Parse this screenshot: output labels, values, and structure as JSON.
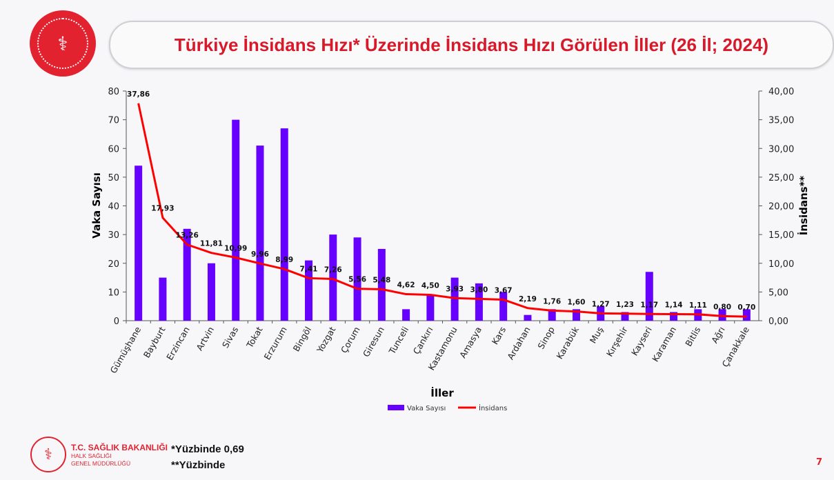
{
  "header": {
    "title": "Türkiye İnsidans Hızı* Üzerinde İnsidans Hızı Görülen İller (26 İl; 2024)"
  },
  "footer": {
    "org_name": "T.C. SAĞLIK BAKANLIĞI",
    "org_sub1": "HALK SAĞLIĞI",
    "org_sub2": "GENEL MÜDÜRLÜĞÜ",
    "note1": "*Yüzbinde 0,69",
    "note2": "**Yüzbinde",
    "page_number": "7"
  },
  "colors": {
    "bar": "#6600ff",
    "line": "#ff0000",
    "title": "#d7192a"
  },
  "chart_data": {
    "type": "bar+line",
    "xlabel": "İller",
    "ylabel": "Vaka Sayısı",
    "y2label": "İnsidans**",
    "ylim": [
      0,
      80
    ],
    "y2lim": [
      0,
      40
    ],
    "yticks": [
      "0",
      "10",
      "20",
      "30",
      "40",
      "50",
      "60",
      "70",
      "80"
    ],
    "y2ticks": [
      "0,00",
      "5,00",
      "10,00",
      "15,00",
      "20,00",
      "25,00",
      "30,00",
      "35,00",
      "40,00"
    ],
    "legend_position": "bottom",
    "grid": false,
    "categories": [
      "Gümüşhane",
      "Bayburt",
      "Erzincan",
      "Artvin",
      "Sivas",
      "Tokat",
      "Erzurum",
      "Bingöl",
      "Yozgat",
      "Çorum",
      "Giresun",
      "Tunceli",
      "Çankırı",
      "Kastamonu",
      "Amasya",
      "Kars",
      "Ardahan",
      "Sinop",
      "Karabük",
      "Muş",
      "Kırşehir",
      "Kayseri",
      "Karaman",
      "Bitlis",
      "Ağrı",
      "Çanakkale"
    ],
    "series": [
      {
        "name": "Vaka Sayısı",
        "type": "bar",
        "axis": "left",
        "values": [
          54,
          15,
          32,
          20,
          70,
          61,
          67,
          21,
          30,
          29,
          25,
          4,
          9,
          15,
          13,
          10,
          2,
          4,
          4,
          5,
          3,
          17,
          3,
          4,
          4,
          4
        ]
      },
      {
        "name": "İnsidans",
        "type": "line",
        "axis": "right",
        "values": [
          37.86,
          17.93,
          13.26,
          11.81,
          10.99,
          9.96,
          8.99,
          7.41,
          7.26,
          5.56,
          5.48,
          4.62,
          4.5,
          3.93,
          3.8,
          3.67,
          2.19,
          1.76,
          1.6,
          1.27,
          1.23,
          1.17,
          1.14,
          1.11,
          0.8,
          0.7
        ],
        "labels": [
          "37,86",
          "17,93",
          "13,26",
          "11,81",
          "10,99",
          "9,96",
          "8,99",
          "7,41",
          "7,26",
          "5,56",
          "5,48",
          "4,62",
          "4,50",
          "3,93",
          "3,80",
          "3,67",
          "2,19",
          "1,76",
          "1,60",
          "1,27",
          "1,23",
          "1,17",
          "1,14",
          "1,11",
          "0,80",
          "0,70"
        ]
      }
    ]
  }
}
